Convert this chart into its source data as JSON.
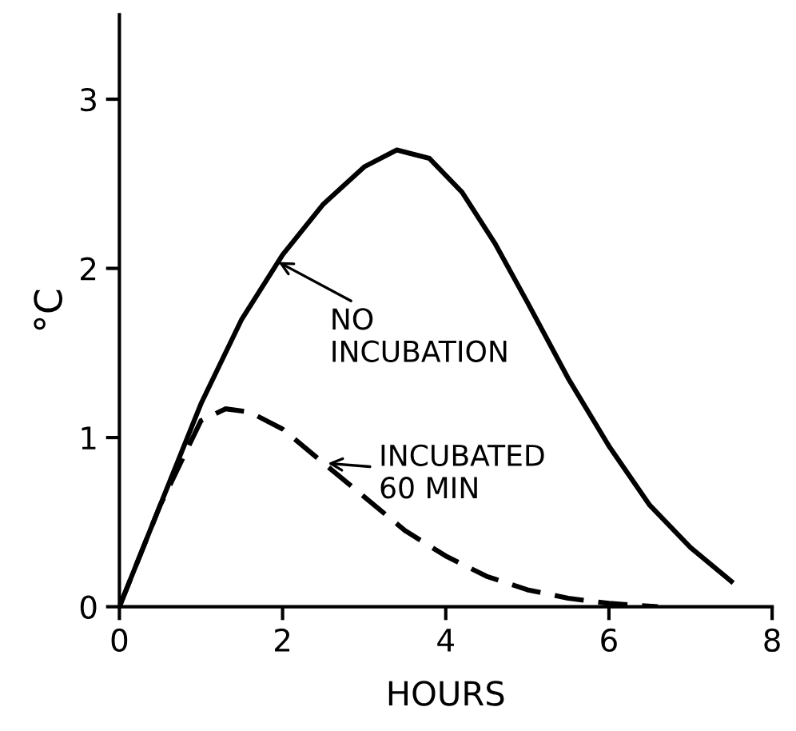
{
  "chart_data": {
    "type": "line",
    "xlabel": "HOURS",
    "ylabel": "°C",
    "xlim": [
      0,
      8
    ],
    "ylim": [
      0,
      3.5
    ],
    "xticks": [
      0,
      2,
      4,
      6,
      8
    ],
    "yticks": [
      0,
      1,
      2,
      3
    ],
    "grid": false,
    "legend": false,
    "marker": "none",
    "series": [
      {
        "color": "#000000",
        "line_style": "solid",
        "x": [
          0,
          0.5,
          1,
          1.5,
          2,
          2.5,
          3,
          3.4,
          3.8,
          4.2,
          4.6,
          5,
          5.5,
          6,
          6.5,
          7,
          7.5
        ],
        "values": [
          0,
          0.6,
          1.2,
          1.7,
          2.08,
          2.38,
          2.6,
          2.7,
          2.65,
          2.45,
          2.15,
          1.8,
          1.35,
          0.95,
          0.6,
          0.35,
          0.15
        ]
      },
      {
        "color": "#000000",
        "line_style": "dashed",
        "x": [
          0,
          0.5,
          1,
          1.3,
          1.6,
          2,
          2.5,
          3,
          3.5,
          4,
          4.5,
          5,
          5.5,
          6,
          6.6
        ],
        "values": [
          0,
          0.6,
          1.1,
          1.17,
          1.15,
          1.05,
          0.85,
          0.65,
          0.45,
          0.3,
          0.18,
          0.1,
          0.05,
          0.02,
          0
        ]
      }
    ],
    "annotations": [
      {
        "text": "NO\nINCUBATION",
        "x": 1.9,
        "y": 2.05
      },
      {
        "text": "INCUBATED\n60 MIN",
        "x": 2.5,
        "y": 0.85
      }
    ]
  }
}
